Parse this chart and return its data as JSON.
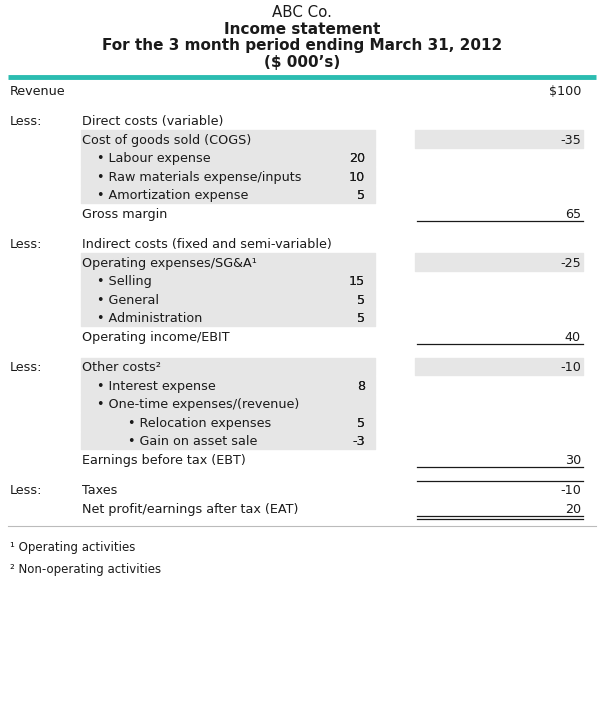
{
  "title_lines": [
    "ABC Co.",
    "Income statement",
    "For the 3 month period ending March 31, 2012",
    "($ 000’s)"
  ],
  "title_bold": [
    false,
    true,
    true,
    true
  ],
  "teal_line_color": "#2BBCB0",
  "bg_color": "#FFFFFF",
  "text_color": "#1a1a1a",
  "gray_bg": "#E6E6E6",
  "footnotes": [
    "¹ Operating activities",
    "² Non-operating activities"
  ]
}
